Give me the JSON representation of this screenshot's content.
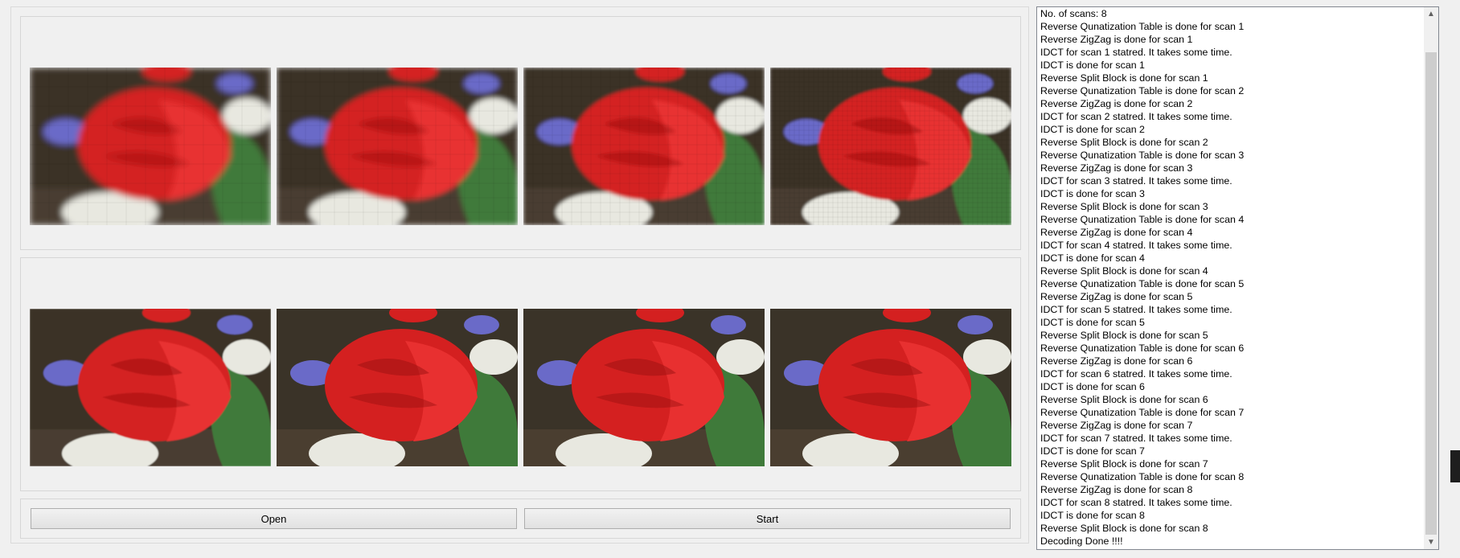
{
  "images": {
    "row1": [
      {
        "name": "scan-1-image",
        "quality": 1
      },
      {
        "name": "scan-2-image",
        "quality": 2
      },
      {
        "name": "scan-3-image",
        "quality": 3
      },
      {
        "name": "scan-4-image",
        "quality": 4
      }
    ],
    "row2": [
      {
        "name": "scan-5-image",
        "quality": 5
      },
      {
        "name": "scan-6-image",
        "quality": 6
      },
      {
        "name": "scan-7-image",
        "quality": 7
      },
      {
        "name": "scan-8-image",
        "quality": 8
      }
    ]
  },
  "buttons": {
    "open_label": "Open",
    "start_label": "Start"
  },
  "log": {
    "lines": [
      "No. of scans: 8",
      "Reverse Qunatization Table is done for scan 1",
      "Reverse ZigZag is done for scan 1",
      "IDCT for scan 1 statred. It takes some time.",
      "IDCT is done for scan 1",
      "Reverse Split Block is done for scan 1",
      "Reverse Qunatization Table is done for scan 2",
      "Reverse ZigZag is done for scan 2",
      "IDCT for scan 2 statred. It takes some time.",
      "IDCT is done for scan 2",
      "Reverse Split Block is done for scan 2",
      "Reverse Qunatization Table is done for scan 3",
      "Reverse ZigZag is done for scan 3",
      "IDCT for scan 3 statred. It takes some time.",
      "IDCT is done for scan 3",
      "Reverse Split Block is done for scan 3",
      "Reverse Qunatization Table is done for scan 4",
      "Reverse ZigZag is done for scan 4",
      "IDCT for scan 4 statred. It takes some time.",
      "IDCT is done for scan 4",
      "Reverse Split Block is done for scan 4",
      "Reverse Qunatization Table is done for scan 5",
      "Reverse ZigZag is done for scan 5",
      "IDCT for scan 5 statred. It takes some time.",
      "IDCT is done for scan 5",
      "Reverse Split Block is done for scan 5",
      "Reverse Qunatization Table is done for scan 6",
      "Reverse ZigZag is done for scan 6",
      "IDCT for scan 6 statred. It takes some time.",
      "IDCT is done for scan 6",
      "Reverse Split Block is done for scan 6",
      "Reverse Qunatization Table is done for scan 7",
      "Reverse ZigZag is done for scan 7",
      "IDCT for scan 7 statred. It takes some time.",
      "IDCT is done for scan 7",
      "Reverse Split Block is done for scan 7",
      "Reverse Qunatization Table is done for scan 8",
      "Reverse ZigZag is done for scan 8",
      "IDCT for scan 8 statred. It takes some time.",
      "IDCT is done for scan 8",
      "Reverse Split Block is done for scan 8",
      "Decoding Done !!!!"
    ]
  },
  "scrollbar": {
    "up_icon": "chevron-up-icon",
    "down_icon": "chevron-down-icon"
  },
  "colors": {
    "rose": "#d42020",
    "rose_dark": "#9a1010",
    "leaf": "#3f7a3a",
    "iris": "#6a6ac8",
    "petal_white": "#e8e8e0",
    "background_dark": "#3a3328"
  }
}
